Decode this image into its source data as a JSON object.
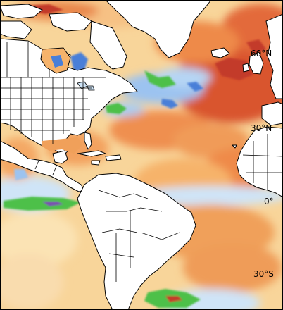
{
  "map": {
    "lat_labels": [
      "60°N",
      "30°N",
      "0°",
      "30°S"
    ],
    "color_scale": {
      "cool_deep": "#4a7fd8",
      "cool": "#9cc3f0",
      "cool_light": "#cfe4f7",
      "neutral": "#f6f2e0",
      "warm_light": "#fbe3b4",
      "warm": "#f6b36b",
      "warm_mid": "#ee8a4a",
      "warm_strong": "#e0603a",
      "hot": "#c33a2c",
      "anomaly_green": "#4ec04a",
      "anomaly_purple": "#7a4fb0"
    },
    "land_color": "#ffffff",
    "border_color": "#000000"
  }
}
